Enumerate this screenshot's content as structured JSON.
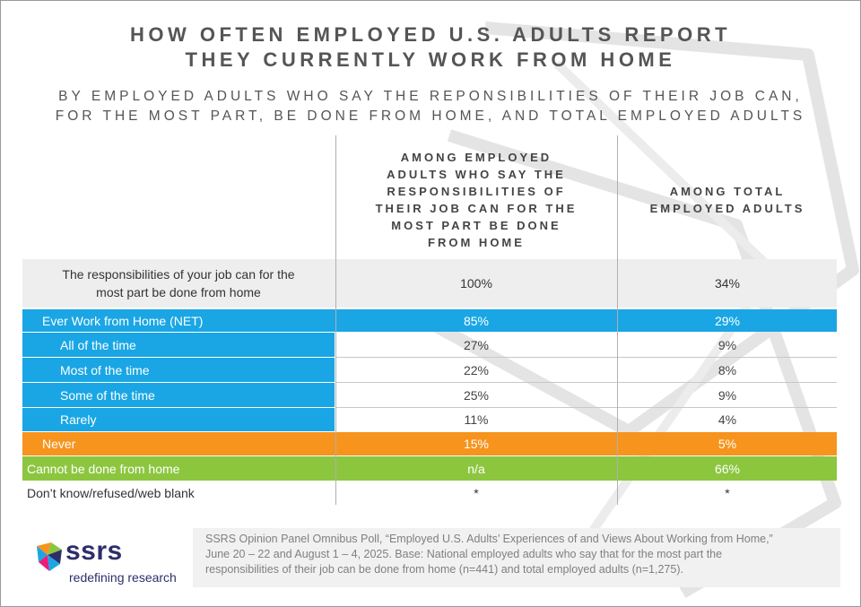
{
  "title_line1": "HOW OFTEN EMPLOYED U.S. ADULTS REPORT",
  "title_line2": "THEY CURRENTLY WORK FROM HOME",
  "subtitle_line1": "BY EMPLOYED ADULTS WHO SAY THE REPONSIBILITIES OF THEIR JOB CAN,",
  "subtitle_line2": "FOR THE MOST PART, BE DONE FROM HOME, AND TOTAL EMPLOYED ADULTS",
  "columns": {
    "col1": [
      "AMONG EMPLOYED",
      "ADULTS WHO SAY THE",
      "RESPONSIBILITIES OF",
      "THEIR JOB CAN FOR THE",
      "MOST PART BE DONE",
      "FROM HOME"
    ],
    "col2": [
      "AMONG TOTAL",
      "EMPLOYED ADULTS"
    ]
  },
  "rows": [
    {
      "label_line1": "The responsibilities of your job can for the",
      "label_line2": "most part be done from home",
      "v1": "100%",
      "v2": "34%"
    },
    {
      "label": "Ever Work from Home (NET)",
      "v1": "85%",
      "v2": "29%"
    },
    {
      "label": "All of the time",
      "v1": "27%",
      "v2": "9%"
    },
    {
      "label": "Most of the time",
      "v1": "22%",
      "v2": "8%"
    },
    {
      "label": "Some of the time",
      "v1": "25%",
      "v2": "9%"
    },
    {
      "label": "Rarely",
      "v1": "11%",
      "v2": "4%"
    },
    {
      "label": "Never",
      "v1": "15%",
      "v2": "5%"
    },
    {
      "label": "Cannot be done from home",
      "v1": "n/a",
      "v2": "66%"
    },
    {
      "label": "Don’t know/refused/web blank",
      "v1": "*",
      "v2": "*"
    }
  ],
  "colors": {
    "blue": "#1aa6e4",
    "orange": "#f7941d",
    "green": "#8cc63f",
    "gray": "#eeeeee"
  },
  "logo": {
    "name": "ssrs",
    "tagline": "redefining research",
    "icon": "ssrs-logo-icon"
  },
  "source": {
    "line1": "SSRS Opinion Panel Omnibus Poll, “Employed U.S. Adults’ Experiences of and Views About Working from Home,”",
    "line2": "June 20 – 22 and August 1 – 4, 2025. Base: National employed adults who say that for the most part the",
    "line3": "responsibilities of their job can be done from home (n=441) and total employed adults (n=1,275)."
  }
}
